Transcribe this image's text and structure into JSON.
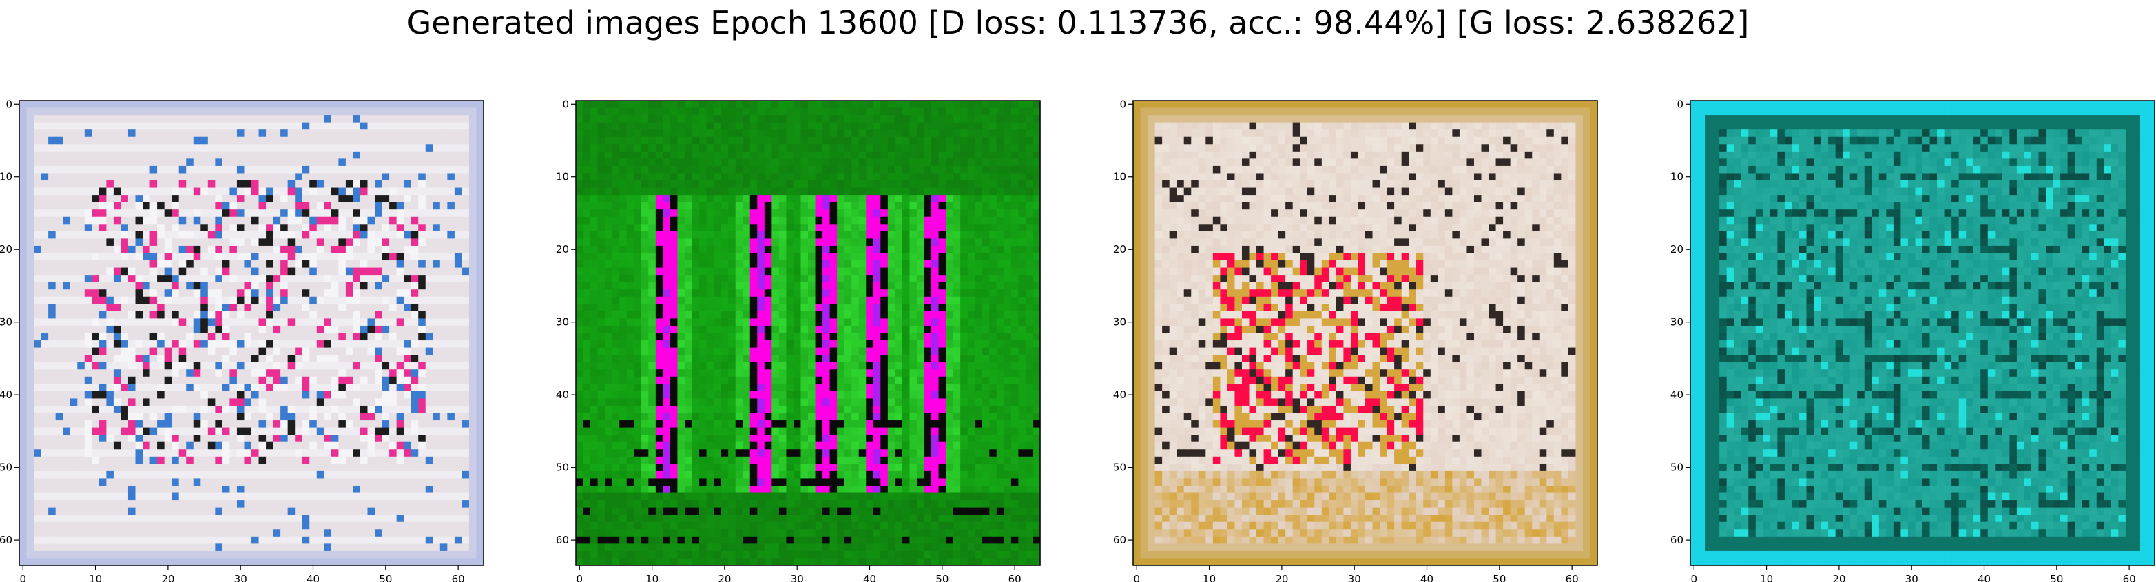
{
  "figure": {
    "title": "Generated images Epoch 13600 [D loss: 0.113736, acc.: 98.44%] [G loss: 2.638262]"
  },
  "axes": {
    "x_ticks": [
      "0",
      "10",
      "20",
      "30",
      "40",
      "50",
      "60"
    ],
    "y_ticks": [
      "0",
      "10",
      "20",
      "30",
      "40",
      "50",
      "60"
    ],
    "xlim": [
      -0.5,
      63.5
    ],
    "ylim": [
      63.5,
      -0.5
    ]
  },
  "panels": [
    {
      "name": "image-1",
      "palette": {
        "base": "#e7e1e6",
        "border": "#b8c0e6",
        "accent1": "#ea2f93",
        "accent2": "#3b7bd0",
        "accent3": "#1d1d1d",
        "accent4": "#f5f5f8"
      }
    },
    {
      "name": "image-2",
      "palette": {
        "base": "#119310",
        "border": "#0c760a",
        "accent1": "#ff00e4",
        "accent2": "#3ef43e",
        "accent3": "#0a0a0a",
        "accent4": "#19c01b"
      }
    },
    {
      "name": "image-3",
      "palette": {
        "base": "#e4d3c8",
        "border": "#c8a13a",
        "accent1": "#ff0b49",
        "accent2": "#f4efe7",
        "accent3": "#312825",
        "accent4": "#d6a63f"
      }
    },
    {
      "name": "image-4",
      "palette": {
        "base": "#179a8f",
        "border": "#19d5e6",
        "accent1": "#0a6559",
        "accent2": "#22e0d9",
        "accent3": "#102a2a",
        "accent4": "#3cc7b7"
      }
    }
  ]
}
